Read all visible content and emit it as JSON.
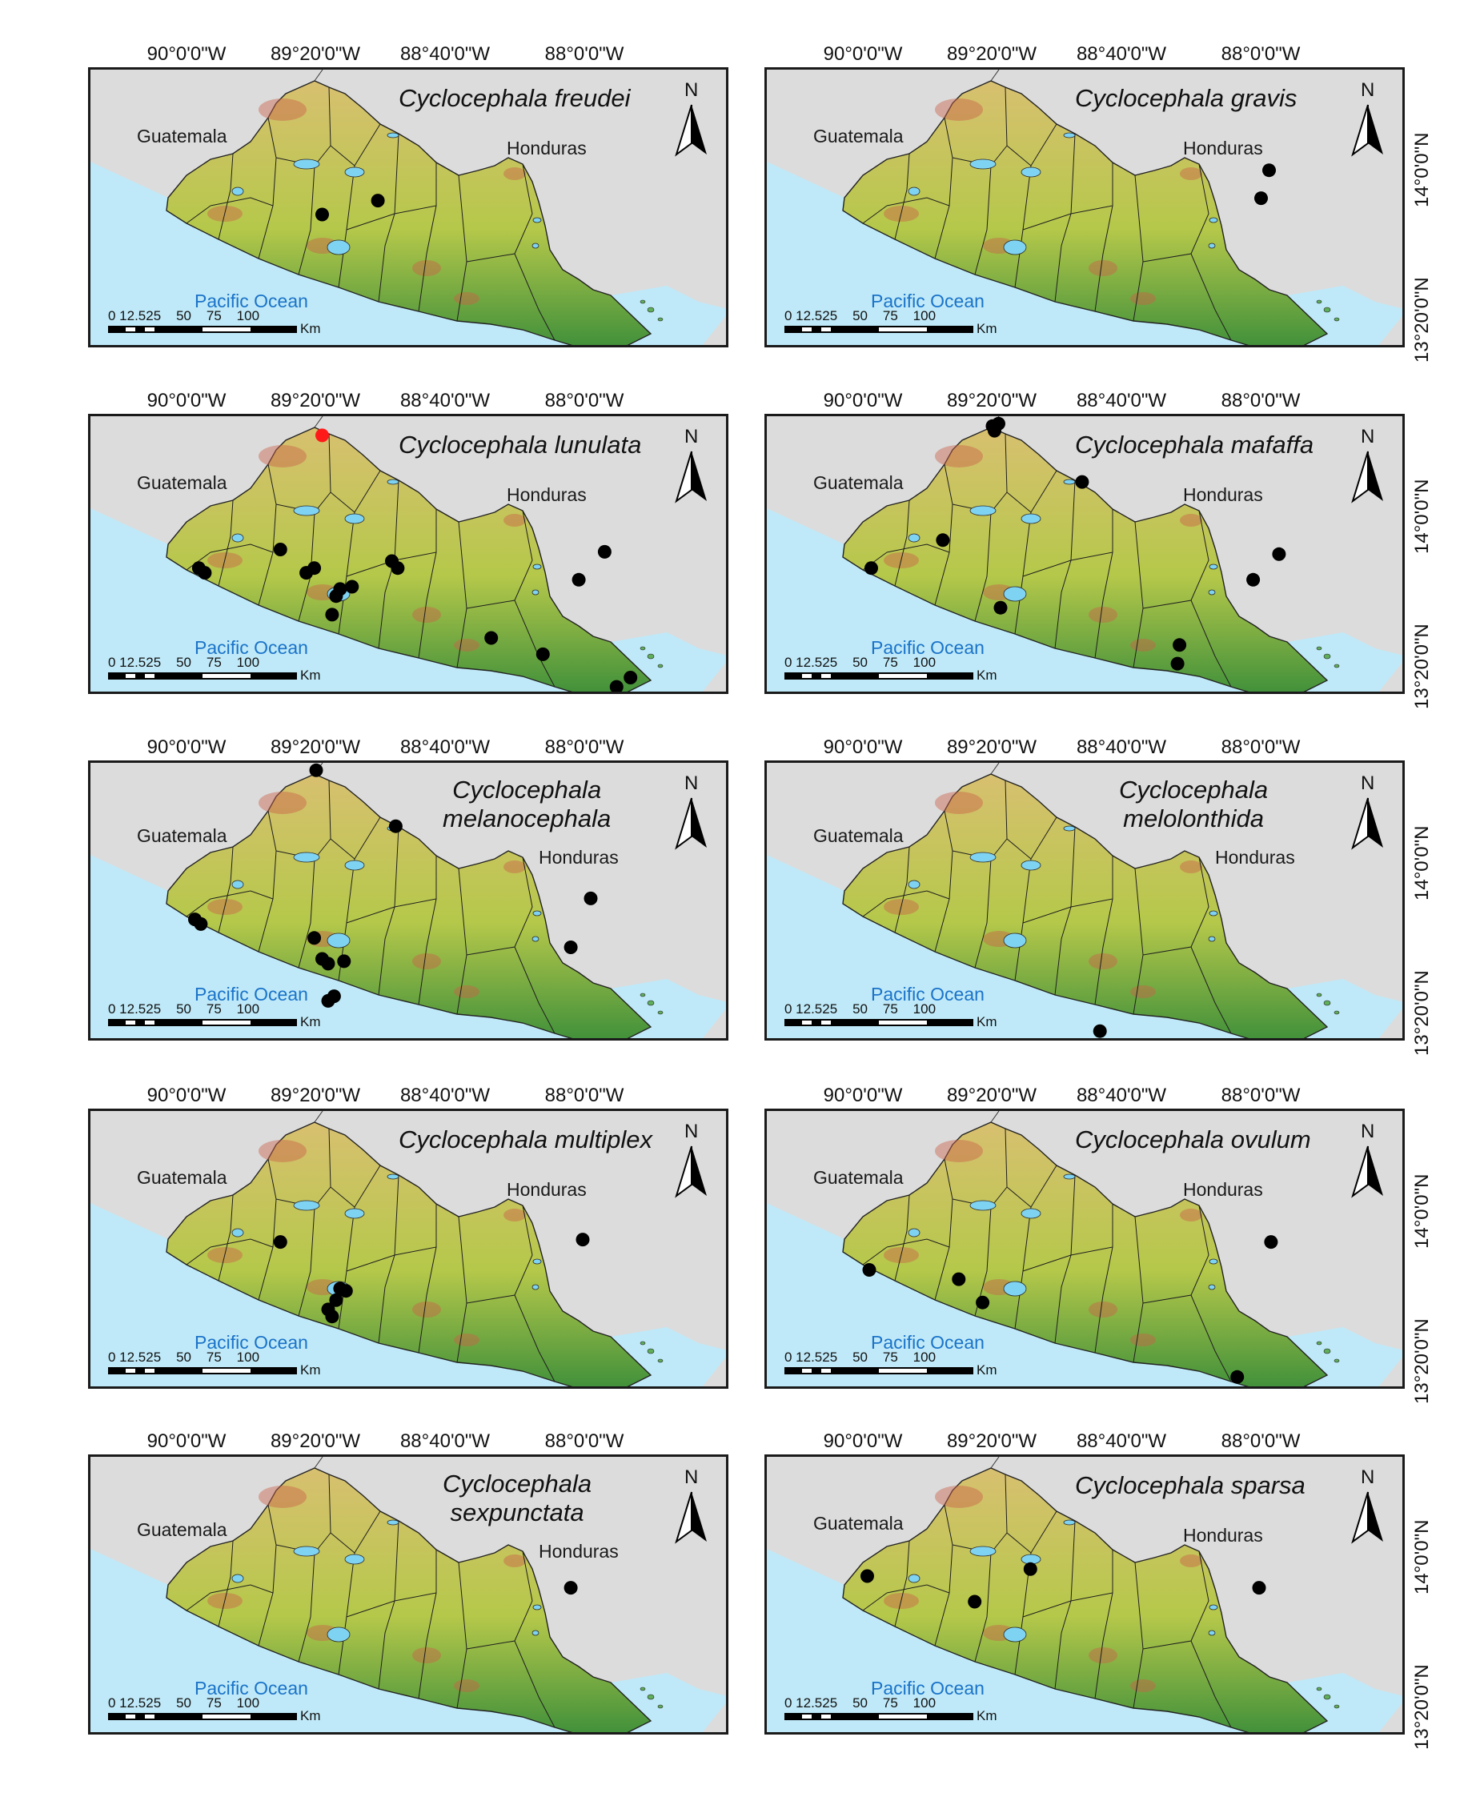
{
  "lon_labels": [
    "90°0'0\"W",
    "89°20'0\"W",
    "88°40'0\"W",
    "88°0'0\"W"
  ],
  "lat_labels": [
    "14°0'0\"N",
    "13°20'0\"N"
  ],
  "labels": {
    "guatemala": "Guatemala",
    "honduras": "Honduras",
    "ocean": "Pacific Ocean",
    "north": "N",
    "scale_numbers": "0 12.525    50    75    100",
    "scale_unit": "Km"
  },
  "colors": {
    "land_low": "#3e8f3a",
    "land_mid": "#b5c84a",
    "land_high": "#d8c070",
    "peak": "#c9624a",
    "ocean": "#bfe9f8",
    "background": "#dcdcdc",
    "record": "#000000",
    "new_record": "#ff1a1a",
    "ocean_label": "#1a73c9"
  },
  "panels": [
    {
      "species": "Cyclocephala freudei",
      "records": [
        {
          "lon": -89.33,
          "lat": 13.78,
          "marker": "record"
        },
        {
          "lon": -89.05,
          "lat": 13.84,
          "marker": "record"
        }
      ]
    },
    {
      "species": "Cyclocephala gravis",
      "records": [
        {
          "lon": -87.97,
          "lat": 13.97,
          "marker": "record"
        },
        {
          "lon": -88.01,
          "lat": 13.85,
          "marker": "record"
        }
      ]
    },
    {
      "species": "Cyclocephala lunulata",
      "records": [
        {
          "lon": -89.33,
          "lat": 14.32,
          "marker": "new_record"
        },
        {
          "lon": -89.95,
          "lat": 13.75,
          "marker": "record"
        },
        {
          "lon": -89.92,
          "lat": 13.73,
          "marker": "record"
        },
        {
          "lon": -89.54,
          "lat": 13.83,
          "marker": "record"
        },
        {
          "lon": -89.41,
          "lat": 13.73,
          "marker": "record"
        },
        {
          "lon": -89.37,
          "lat": 13.75,
          "marker": "record"
        },
        {
          "lon": -89.26,
          "lat": 13.63,
          "marker": "record"
        },
        {
          "lon": -89.24,
          "lat": 13.66,
          "marker": "record"
        },
        {
          "lon": -89.18,
          "lat": 13.67,
          "marker": "record"
        },
        {
          "lon": -88.98,
          "lat": 13.78,
          "marker": "record"
        },
        {
          "lon": -88.95,
          "lat": 13.75,
          "marker": "record"
        },
        {
          "lon": -89.28,
          "lat": 13.55,
          "marker": "record"
        },
        {
          "lon": -88.48,
          "lat": 13.45,
          "marker": "record"
        },
        {
          "lon": -88.22,
          "lat": 13.38,
          "marker": "record"
        },
        {
          "lon": -88.04,
          "lat": 13.7,
          "marker": "record"
        },
        {
          "lon": -87.91,
          "lat": 13.82,
          "marker": "record"
        },
        {
          "lon": -87.85,
          "lat": 13.24,
          "marker": "record"
        },
        {
          "lon": -87.78,
          "lat": 13.28,
          "marker": "record"
        }
      ]
    },
    {
      "species": "Cyclocephala mafaffa",
      "records": [
        {
          "lon": -89.36,
          "lat": 14.36,
          "marker": "record"
        },
        {
          "lon": -89.33,
          "lat": 14.37,
          "marker": "record"
        },
        {
          "lon": -89.35,
          "lat": 14.34,
          "marker": "record"
        },
        {
          "lon": -88.91,
          "lat": 14.12,
          "marker": "record"
        },
        {
          "lon": -89.61,
          "lat": 13.87,
          "marker": "record"
        },
        {
          "lon": -89.97,
          "lat": 13.75,
          "marker": "record"
        },
        {
          "lon": -89.32,
          "lat": 13.58,
          "marker": "record"
        },
        {
          "lon": -88.42,
          "lat": 13.42,
          "marker": "record"
        },
        {
          "lon": -88.43,
          "lat": 13.34,
          "marker": "record"
        },
        {
          "lon": -88.05,
          "lat": 13.7,
          "marker": "record"
        },
        {
          "lon": -87.92,
          "lat": 13.81,
          "marker": "record"
        }
      ]
    },
    {
      "species": "Cyclocephala melanocephala",
      "records": [
        {
          "lon": -89.36,
          "lat": 14.37,
          "marker": "record"
        },
        {
          "lon": -88.96,
          "lat": 14.13,
          "marker": "record"
        },
        {
          "lon": -89.97,
          "lat": 13.73,
          "marker": "record"
        },
        {
          "lon": -89.94,
          "lat": 13.71,
          "marker": "record"
        },
        {
          "lon": -89.37,
          "lat": 13.65,
          "marker": "record"
        },
        {
          "lon": -89.33,
          "lat": 13.56,
          "marker": "record"
        },
        {
          "lon": -89.3,
          "lat": 13.54,
          "marker": "record"
        },
        {
          "lon": -89.22,
          "lat": 13.55,
          "marker": "record"
        },
        {
          "lon": -89.3,
          "lat": 13.38,
          "marker": "record"
        },
        {
          "lon": -89.27,
          "lat": 13.4,
          "marker": "record"
        },
        {
          "lon": -88.08,
          "lat": 13.61,
          "marker": "record"
        },
        {
          "lon": -87.98,
          "lat": 13.82,
          "marker": "record"
        }
      ]
    },
    {
      "species": "Cyclocephala melolonthida",
      "records": [
        {
          "lon": -88.82,
          "lat": 13.25,
          "marker": "record"
        }
      ]
    },
    {
      "species": "Cyclocephala multiplex",
      "records": [
        {
          "lon": -89.54,
          "lat": 13.84,
          "marker": "record"
        },
        {
          "lon": -89.24,
          "lat": 13.64,
          "marker": "record"
        },
        {
          "lon": -89.21,
          "lat": 13.63,
          "marker": "record"
        },
        {
          "lon": -89.26,
          "lat": 13.59,
          "marker": "record"
        },
        {
          "lon": -89.3,
          "lat": 13.55,
          "marker": "record"
        },
        {
          "lon": -89.28,
          "lat": 13.52,
          "marker": "record"
        },
        {
          "lon": -88.02,
          "lat": 13.85,
          "marker": "record"
        }
      ]
    },
    {
      "species": "Cyclocephala ovulum",
      "records": [
        {
          "lon": -89.98,
          "lat": 13.72,
          "marker": "record"
        },
        {
          "lon": -89.53,
          "lat": 13.68,
          "marker": "record"
        },
        {
          "lon": -89.41,
          "lat": 13.58,
          "marker": "record"
        },
        {
          "lon": -87.96,
          "lat": 13.84,
          "marker": "record"
        },
        {
          "lon": -88.13,
          "lat": 13.26,
          "marker": "record"
        }
      ]
    },
    {
      "species": "Cyclocephala sexpunctata",
      "records": [
        {
          "lon": -88.08,
          "lat": 13.84,
          "marker": "record"
        }
      ]
    },
    {
      "species": "Cyclocephala sparsa",
      "records": [
        {
          "lon": -89.99,
          "lat": 13.89,
          "marker": "record"
        },
        {
          "lon": -89.45,
          "lat": 13.78,
          "marker": "record"
        },
        {
          "lon": -89.17,
          "lat": 13.92,
          "marker": "record"
        },
        {
          "lon": -88.02,
          "lat": 13.84,
          "marker": "record"
        }
      ]
    }
  ]
}
